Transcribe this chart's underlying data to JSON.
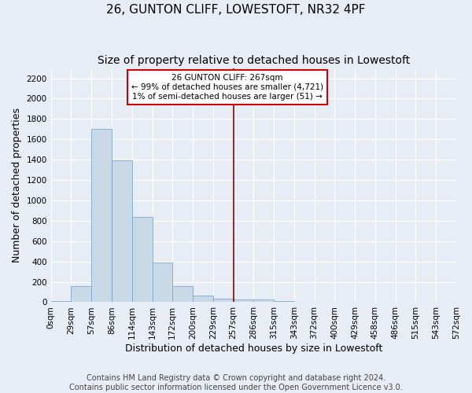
{
  "title": "26, GUNTON CLIFF, LOWESTOFT, NR32 4PF",
  "subtitle": "Size of property relative to detached houses in Lowestoft",
  "xlabel": "Distribution of detached houses by size in Lowestoft",
  "ylabel": "Number of detached properties",
  "footer_line1": "Contains HM Land Registry data © Crown copyright and database right 2024.",
  "footer_line2": "Contains public sector information licensed under the Open Government Licence v3.0.",
  "bin_labels": [
    "0sqm",
    "29sqm",
    "57sqm",
    "86sqm",
    "114sqm",
    "143sqm",
    "172sqm",
    "200sqm",
    "229sqm",
    "257sqm",
    "286sqm",
    "315sqm",
    "343sqm",
    "372sqm",
    "400sqm",
    "429sqm",
    "458sqm",
    "486sqm",
    "515sqm",
    "543sqm",
    "572sqm"
  ],
  "bar_values": [
    15,
    155,
    1700,
    1390,
    840,
    390,
    160,
    65,
    35,
    25,
    25,
    15,
    0,
    0,
    0,
    0,
    0,
    0,
    0,
    0
  ],
  "bar_color": "#c9d9e8",
  "bar_edge_color": "#7baac8",
  "vline_x": 9,
  "vline_color": "#8b0000",
  "annotation_text": "26 GUNTON CLIFF: 267sqm\n← 99% of detached houses are smaller (4,721)\n1% of semi-detached houses are larger (51) →",
  "annotation_box_color": "white",
  "annotation_box_edge": "#cc0000",
  "ylim": [
    0,
    2300
  ],
  "yticks": [
    0,
    200,
    400,
    600,
    800,
    1000,
    1200,
    1400,
    1600,
    1800,
    2000,
    2200
  ],
  "bg_color": "#e8edf5",
  "grid_color": "#ffffff",
  "title_fontsize": 11,
  "subtitle_fontsize": 10,
  "label_fontsize": 9,
  "tick_fontsize": 7.5,
  "footer_fontsize": 7
}
